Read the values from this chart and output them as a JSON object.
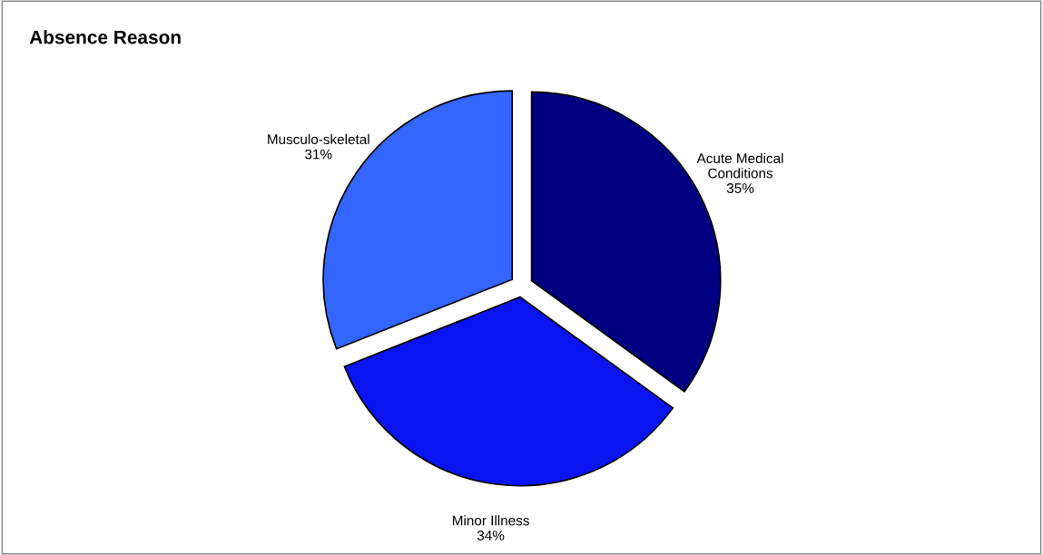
{
  "chart_data": {
    "type": "pie",
    "title": "Absence Reason",
    "categories": [
      "Acute Medical\nConditions",
      "Minor Illness",
      "Musculo-skeletal"
    ],
    "values": [
      35,
      34,
      31
    ],
    "value_labels": [
      "35%",
      "34%",
      "31%"
    ],
    "colors": [
      "#000080",
      "#0a14f0",
      "#3366ff"
    ]
  }
}
